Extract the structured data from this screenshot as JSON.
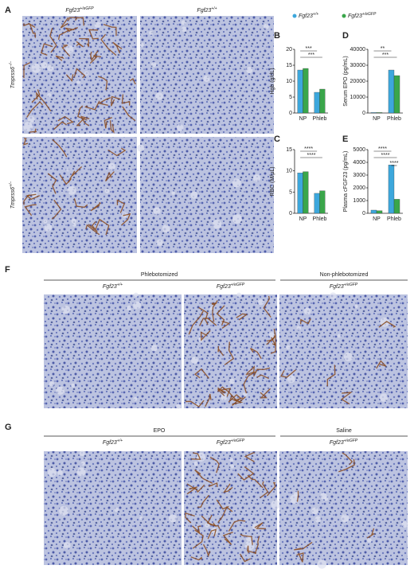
{
  "panel_labels": [
    "A",
    "B",
    "C",
    "D",
    "E",
    "F",
    "G"
  ],
  "panel_a": {
    "columns": [
      {
        "base": "Fgf23",
        "sup": "+/eGFP"
      },
      {
        "base": "Fgf23",
        "sup": "+/+"
      }
    ],
    "rows": [
      {
        "base": "Tmprss6",
        "sup": "−/−"
      },
      {
        "base": "Tmprss6",
        "sup": "+/−"
      }
    ]
  },
  "legend": [
    {
      "base": "Fgf23",
      "sup": "+/+",
      "color": "#3da7dc"
    },
    {
      "base": "Fgf23",
      "sup": "+/eGFP",
      "color": "#3aa64a"
    }
  ],
  "chart_data": [
    {
      "type": "bar",
      "ylabel": "Hgb (g/dL)",
      "categories": [
        "NP",
        "Phleb"
      ],
      "series": [
        {
          "color": "#3da7dc",
          "values": [
            13.5,
            6.5
          ]
        },
        {
          "color": "#3aa64a",
          "values": [
            14,
            7.5
          ]
        }
      ],
      "ylim": [
        0,
        20
      ],
      "yticks": [
        0,
        5,
        10,
        15,
        20
      ],
      "significance": [
        "***",
        "***"
      ]
    },
    {
      "type": "bar",
      "ylabel": "RBC (M/µL)",
      "categories": [
        "NP",
        "Phleb"
      ],
      "series": [
        {
          "color": "#3da7dc",
          "values": [
            9.5,
            4.7
          ]
        },
        {
          "color": "#3aa64a",
          "values": [
            9.8,
            5.3
          ]
        }
      ],
      "ylim": [
        0,
        15
      ],
      "yticks": [
        0,
        5,
        10,
        15
      ],
      "significance": [
        "****",
        "****"
      ]
    },
    {
      "type": "bar",
      "ylabel": "Serum EPO (pg/mL)",
      "categories": [
        "NP",
        "Phleb"
      ],
      "series": [
        {
          "color": "#3da7dc",
          "values": [
            300,
            27000
          ]
        },
        {
          "color": "#3aa64a",
          "values": [
            300,
            23500
          ]
        }
      ],
      "ylim": [
        0,
        40000
      ],
      "yticks": [
        0,
        10000,
        20000,
        30000,
        40000
      ],
      "significance": [
        "**",
        "***"
      ]
    },
    {
      "type": "bar",
      "ylabel": "Plasma cFGF23 (pg/mL)",
      "categories": [
        "NP",
        "Phleb"
      ],
      "series": [
        {
          "color": "#3da7dc",
          "values": [
            250,
            3800
          ]
        },
        {
          "color": "#3aa64a",
          "values": [
            200,
            1100
          ]
        }
      ],
      "ylim": [
        0,
        5000
      ],
      "yticks": [
        0,
        1000,
        2000,
        3000,
        4000,
        5000
      ],
      "significance": [
        "****",
        "****",
        "****"
      ]
    }
  ],
  "panel_f": {
    "groups": [
      "Phlebotomized",
      "Non-phlebotomized"
    ],
    "columns": [
      {
        "base": "Fgf23",
        "sup": "+/+"
      },
      {
        "base": "Fgf23",
        "sup": "+/eGFP"
      },
      {
        "base": "Fgf23",
        "sup": "+/eGFP"
      }
    ]
  },
  "panel_g": {
    "groups": [
      "EPO",
      "Saline"
    ],
    "columns": [
      {
        "base": "Fgf23",
        "sup": "+/+"
      },
      {
        "base": "Fgf23",
        "sup": "+/eGFP"
      },
      {
        "base": "Fgf23",
        "sup": "+/eGFP"
      }
    ]
  }
}
